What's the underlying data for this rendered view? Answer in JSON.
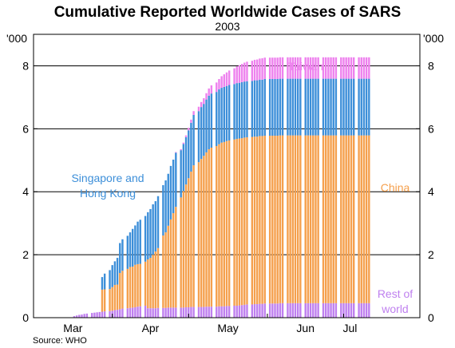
{
  "title": "Cumulative Reported Worldwide Cases of SARS",
  "subtitle": "2003",
  "source": "Source: WHO",
  "unit_left": "'000",
  "unit_right": "'000",
  "colors": {
    "china": "#f5a04d",
    "singapore_hk": "#3d8fd9",
    "taiwan": "#ee82ee",
    "rest": "#bf80ef",
    "grid": "#000000"
  },
  "annotations": {
    "taiwan": "Taiwan",
    "singapore_line1": "Singapore and",
    "singapore_line2": "Hong Kong",
    "china": "China",
    "rest_line1": "Rest of",
    "rest_line2": "world"
  },
  "chart_data": {
    "type": "bar",
    "stacked": true,
    "title": "Cumulative Reported Worldwide Cases of SARS",
    "subtitle": "2003",
    "xlabel": "",
    "ylabel": "'000",
    "ylim": [
      0,
      9
    ],
    "yticks": [
      0,
      2,
      4,
      6,
      8
    ],
    "xtick_labels": [
      "Mar",
      "Apr",
      "May",
      "Jun",
      "Jul"
    ],
    "grid": true,
    "x_dates": [
      "2003-03-17",
      "2003-03-18",
      "2003-03-19",
      "2003-03-20",
      "2003-03-21",
      "2003-03-22",
      "2003-03-24",
      "2003-03-25",
      "2003-03-26",
      "2003-03-27",
      "2003-03-28",
      "2003-03-29",
      "2003-03-31",
      "2003-04-01",
      "2003-04-02",
      "2003-04-03",
      "2003-04-04",
      "2003-04-05",
      "2003-04-07",
      "2003-04-08",
      "2003-04-09",
      "2003-04-10",
      "2003-04-11",
      "2003-04-12",
      "2003-04-14",
      "2003-04-15",
      "2003-04-16",
      "2003-04-17",
      "2003-04-18",
      "2003-04-19",
      "2003-04-21",
      "2003-04-22",
      "2003-04-23",
      "2003-04-24",
      "2003-04-25",
      "2003-04-26",
      "2003-04-28",
      "2003-04-29",
      "2003-04-30",
      "2003-05-01",
      "2003-05-02",
      "2003-05-03",
      "2003-05-05",
      "2003-05-06",
      "2003-05-07",
      "2003-05-08",
      "2003-05-09",
      "2003-05-10",
      "2003-05-12",
      "2003-05-13",
      "2003-05-14",
      "2003-05-15",
      "2003-05-16",
      "2003-05-17",
      "2003-05-19",
      "2003-05-20",
      "2003-05-21",
      "2003-05-22",
      "2003-05-23",
      "2003-05-24",
      "2003-05-26",
      "2003-05-27",
      "2003-05-28",
      "2003-05-29",
      "2003-05-30",
      "2003-05-31",
      "2003-06-02",
      "2003-06-03",
      "2003-06-04",
      "2003-06-05",
      "2003-06-06",
      "2003-06-07",
      "2003-06-09",
      "2003-06-10",
      "2003-06-11",
      "2003-06-12",
      "2003-06-13",
      "2003-06-14",
      "2003-06-16",
      "2003-06-17",
      "2003-06-18",
      "2003-06-19",
      "2003-06-20",
      "2003-06-21",
      "2003-06-23",
      "2003-06-24",
      "2003-06-25",
      "2003-06-26",
      "2003-06-27",
      "2003-06-28",
      "2003-06-30",
      "2003-07-01",
      "2003-07-02",
      "2003-07-03",
      "2003-07-04",
      "2003-07-05",
      "2003-07-07",
      "2003-07-08",
      "2003-07-09",
      "2003-07-10",
      "2003-07-11"
    ],
    "series": [
      {
        "name": "Rest of world",
        "values": [
          0.05,
          0.07,
          0.09,
          0.1,
          0.12,
          0.13,
          0.15,
          0.16,
          0.17,
          0.18,
          0.19,
          0.2,
          0.21,
          0.22,
          0.24,
          0.25,
          0.27,
          0.29,
          0.3,
          0.31,
          0.32,
          0.33,
          0.35,
          0.36,
          0.38,
          0.3,
          0.3,
          0.3,
          0.3,
          0.31,
          0.31,
          0.31,
          0.32,
          0.32,
          0.32,
          0.32,
          0.32,
          0.32,
          0.33,
          0.33,
          0.34,
          0.34,
          0.34,
          0.34,
          0.34,
          0.35,
          0.35,
          0.35,
          0.35,
          0.36,
          0.36,
          0.36,
          0.37,
          0.37,
          0.38,
          0.38,
          0.39,
          0.4,
          0.41,
          0.42,
          0.42,
          0.43,
          0.43,
          0.44,
          0.44,
          0.45,
          0.45,
          0.45,
          0.45,
          0.45,
          0.46,
          0.46,
          0.46,
          0.46,
          0.46,
          0.46,
          0.46,
          0.46,
          0.46,
          0.46,
          0.46,
          0.46,
          0.46,
          0.46,
          0.46,
          0.46,
          0.46,
          0.46,
          0.46,
          0.46,
          0.46,
          0.46,
          0.46,
          0.46,
          0.46,
          0.46,
          0.46,
          0.46,
          0.46,
          0.46,
          0.46
        ]
      },
      {
        "name": "China",
        "values": [
          0,
          0,
          0,
          0,
          0,
          0,
          0,
          0,
          0,
          0,
          0.7,
          0.7,
          0.7,
          0.75,
          0.8,
          0.8,
          1.15,
          1.2,
          1.25,
          1.3,
          1.3,
          1.35,
          1.35,
          1.35,
          1.4,
          1.55,
          1.6,
          1.7,
          1.8,
          1.9,
          2.3,
          2.4,
          2.6,
          2.8,
          3.0,
          3.2,
          3.5,
          3.7,
          3.9,
          4.1,
          4.3,
          4.5,
          4.6,
          4.7,
          4.8,
          4.9,
          5.0,
          5.05,
          5.1,
          5.15,
          5.2,
          5.22,
          5.24,
          5.26,
          5.28,
          5.3,
          5.3,
          5.3,
          5.31,
          5.31,
          5.32,
          5.32,
          5.32,
          5.33,
          5.33,
          5.33,
          5.33,
          5.33,
          5.33,
          5.33,
          5.33,
          5.33,
          5.33,
          5.33,
          5.33,
          5.33,
          5.33,
          5.33,
          5.33,
          5.33,
          5.33,
          5.33,
          5.33,
          5.33,
          5.33,
          5.33,
          5.33,
          5.33,
          5.33,
          5.33,
          5.33,
          5.33,
          5.33,
          5.33,
          5.33,
          5.33,
          5.33,
          5.33,
          5.33,
          5.33,
          5.33
        ]
      },
      {
        "name": "Singapore and Hong Kong",
        "values": [
          0,
          0,
          0,
          0,
          0,
          0,
          0,
          0,
          0,
          0,
          0.4,
          0.5,
          0.6,
          0.7,
          0.75,
          0.85,
          0.95,
          1.0,
          1.05,
          1.1,
          1.2,
          1.25,
          1.35,
          1.4,
          1.45,
          1.5,
          1.55,
          1.6,
          1.6,
          1.65,
          1.6,
          1.65,
          1.65,
          1.7,
          1.7,
          1.72,
          1.5,
          1.5,
          1.5,
          1.52,
          1.55,
          1.6,
          1.62,
          1.65,
          1.65,
          1.68,
          1.7,
          1.72,
          1.72,
          1.74,
          1.74,
          1.75,
          1.75,
          1.76,
          1.76,
          1.77,
          1.77,
          1.78,
          1.78,
          1.78,
          1.78,
          1.79,
          1.79,
          1.79,
          1.79,
          1.8,
          1.8,
          1.8,
          1.8,
          1.8,
          1.8,
          1.8,
          1.8,
          1.8,
          1.8,
          1.8,
          1.8,
          1.8,
          1.8,
          1.8,
          1.8,
          1.8,
          1.8,
          1.8,
          1.8,
          1.8,
          1.8,
          1.8,
          1.8,
          1.8,
          1.8,
          1.8,
          1.8,
          1.8,
          1.8,
          1.8,
          1.8,
          1.8,
          1.8,
          1.8,
          1.8
        ]
      },
      {
        "name": "Taiwan",
        "values": [
          0,
          0,
          0,
          0,
          0,
          0,
          0,
          0,
          0,
          0,
          0,
          0,
          0,
          0,
          0,
          0,
          0,
          0,
          0,
          0,
          0,
          0,
          0,
          0,
          0,
          0,
          0,
          0,
          0,
          0,
          0,
          0,
          0,
          0,
          0,
          0.02,
          0.03,
          0.04,
          0.06,
          0.08,
          0.1,
          0.12,
          0.14,
          0.16,
          0.18,
          0.2,
          0.23,
          0.26,
          0.3,
          0.33,
          0.37,
          0.4,
          0.43,
          0.46,
          0.5,
          0.53,
          0.56,
          0.58,
          0.6,
          0.62,
          0.64,
          0.65,
          0.66,
          0.67,
          0.68,
          0.68,
          0.68,
          0.68,
          0.68,
          0.68,
          0.68,
          0.68,
          0.68,
          0.68,
          0.68,
          0.68,
          0.68,
          0.68,
          0.68,
          0.68,
          0.68,
          0.68,
          0.68,
          0.68,
          0.68,
          0.68,
          0.68,
          0.68,
          0.68,
          0.68,
          0.68,
          0.68,
          0.68,
          0.68,
          0.68,
          0.68,
          0.68,
          0.68,
          0.68,
          0.68,
          0.68
        ]
      }
    ]
  }
}
